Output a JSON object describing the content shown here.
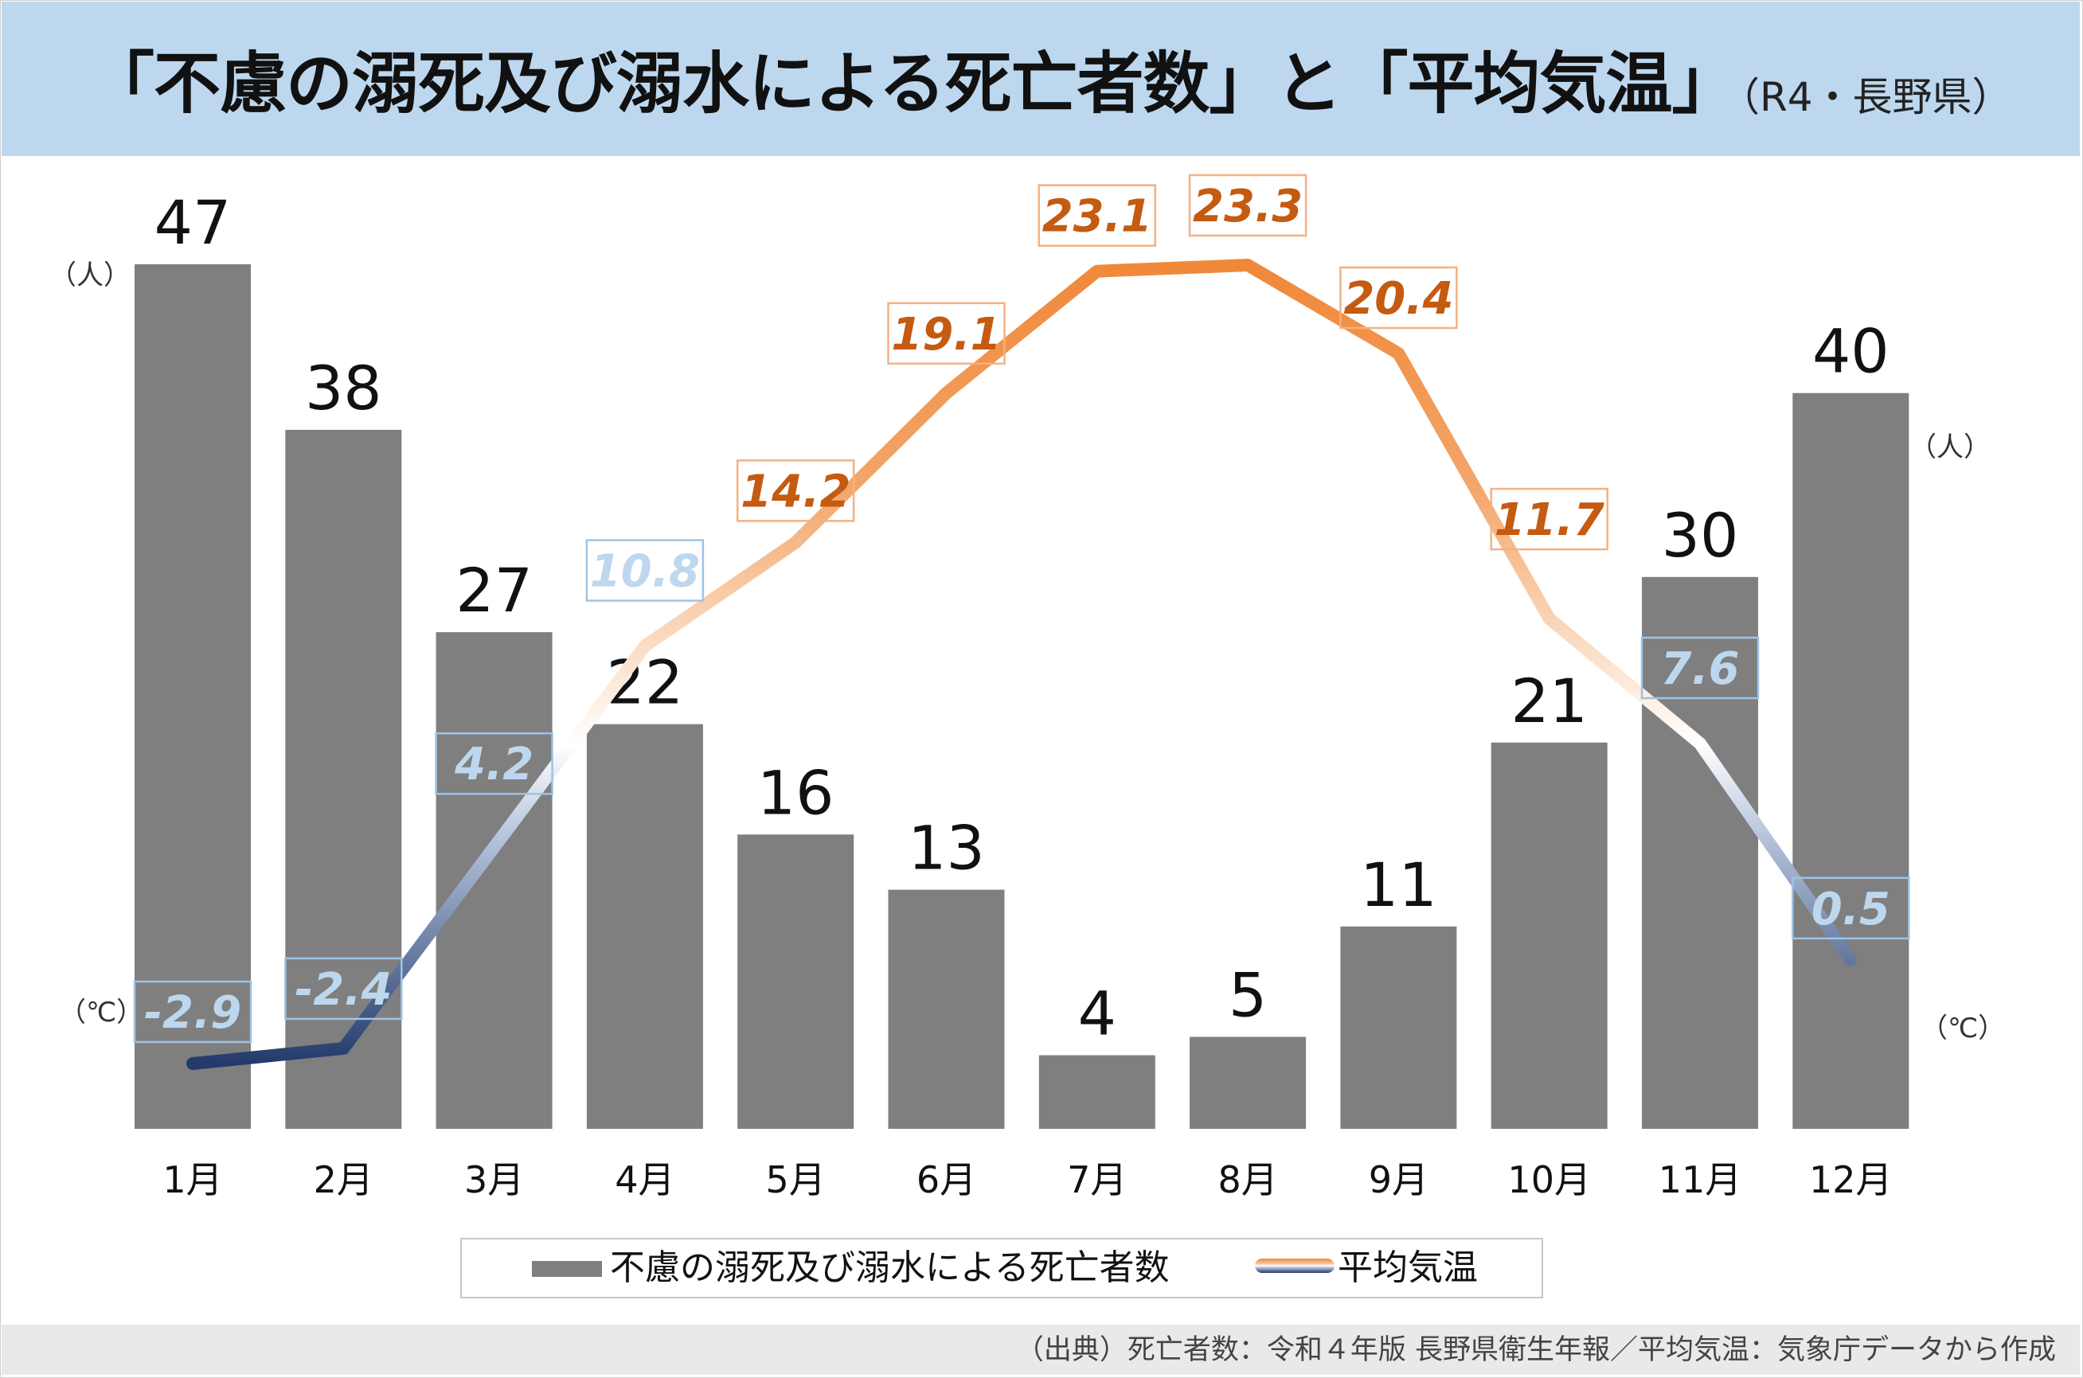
{
  "chart_data": {
    "type": "bar+line",
    "title": "「不慮の溺死及び溺水による死亡者数」と「平均気温」",
    "subtitle": "（R4・長野県）",
    "categories": [
      "1月",
      "2月",
      "3月",
      "4月",
      "5月",
      "6月",
      "7月",
      "8月",
      "9月",
      "10月",
      "11月",
      "12月"
    ],
    "series": [
      {
        "name": "不慮の溺死及び溺水による死亡者数",
        "type": "bar",
        "unit": "（人）",
        "color": "#7f7f7f",
        "values": [
          47,
          38,
          27,
          22,
          16,
          13,
          4,
          5,
          11,
          21,
          30,
          40
        ]
      },
      {
        "name": "平均気温",
        "type": "line",
        "unit": "（℃）",
        "warm_color": "#f0883a",
        "cold_color": "#233a6b",
        "values": [
          -2.9,
          -2.4,
          4.2,
          10.8,
          14.2,
          19.1,
          23.1,
          23.3,
          20.4,
          11.7,
          7.6,
          0.5
        ]
      }
    ],
    "bar_axis_range": [
      0,
      47
    ],
    "line_axis_range": [
      -2.9,
      23.3
    ],
    "grid": false,
    "legend_position": "bottom"
  },
  "units": {
    "bar_left": "（人）",
    "bar_right": "（人）",
    "line_left": "（℃）",
    "line_right": "（℃）"
  },
  "legend": {
    "bar_label": "不慮の溺死及び溺水による死亡者数",
    "line_label": "平均気温"
  },
  "footer": {
    "source": "（出典）死亡者数：令和４年版  長野県衛生年報／平均気温：気象庁データから作成"
  },
  "colors": {
    "title_bg": "#bdd7ee",
    "bar": "#7f7f7f",
    "warm_label_text": "#c55a11",
    "warm_label_border": "#f4b183",
    "cold_label_text": "#bdd7ee",
    "cold_label_border": "#9dc3e6",
    "footer_bg": "#e9e9e9"
  }
}
